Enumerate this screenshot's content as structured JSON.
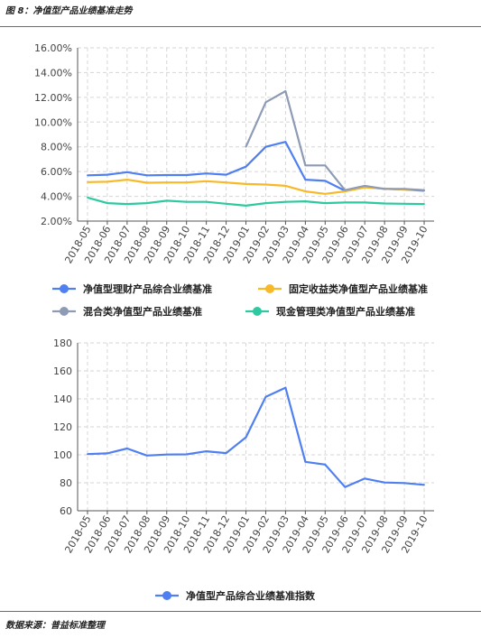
{
  "page": {
    "header": "图 8：净值型产品业绩基准走势",
    "footer": "数据来源：普益标准整理"
  },
  "colors": {
    "blue": "#4f7ff0",
    "orange": "#f7b928",
    "gray": "#8e9bb5",
    "green": "#2ec9a0",
    "grid": "#d6d6d6",
    "axis": "#555555"
  },
  "chart_data": [
    {
      "type": "line",
      "categories": [
        "2018-05",
        "2018-06",
        "2018-07",
        "2018-08",
        "2018-09",
        "2018-10",
        "2018-11",
        "2018-12",
        "2019-01",
        "2019-02",
        "2019-03",
        "2019-04",
        "2019-05",
        "2019-06",
        "2019-07",
        "2019-08",
        "2019-09",
        "2019-10"
      ],
      "ylim": [
        2.0,
        16.0
      ],
      "yticks": [
        "16.00%",
        "14.00%",
        "12.00%",
        "10.00%",
        "8.00%",
        "6.00%",
        "4.00%",
        "2.00%"
      ],
      "grid": true,
      "legend_position": "bottom",
      "series": [
        {
          "name": "净值型理财产品综合业绩基准",
          "color": "#4f7ff0",
          "values": [
            5.7,
            5.75,
            5.95,
            5.7,
            5.72,
            5.72,
            5.85,
            5.75,
            6.4,
            8.0,
            8.4,
            5.35,
            5.25,
            4.45,
            4.75,
            4.6,
            4.55,
            4.45
          ]
        },
        {
          "name": "固定收益类净值型产品业绩基准",
          "color": "#f7b928",
          "values": [
            5.15,
            5.18,
            5.35,
            5.1,
            5.12,
            5.12,
            5.22,
            5.12,
            5.0,
            4.95,
            4.85,
            4.4,
            4.2,
            4.4,
            4.72,
            4.62,
            4.55,
            4.5
          ]
        },
        {
          "name": "混合类净值型产品业绩基准",
          "color": "#8e9bb5",
          "values": [
            null,
            null,
            null,
            null,
            null,
            null,
            null,
            null,
            8.0,
            11.6,
            12.5,
            6.5,
            6.5,
            4.5,
            4.85,
            4.6,
            4.6,
            4.5
          ]
        },
        {
          "name": "现金管理类净值型产品业绩基准",
          "color": "#2ec9a0",
          "values": [
            3.9,
            3.45,
            3.38,
            3.45,
            3.65,
            3.55,
            3.55,
            3.4,
            3.25,
            3.45,
            3.55,
            3.6,
            3.45,
            3.5,
            3.5,
            3.42,
            3.4,
            3.38
          ]
        }
      ]
    },
    {
      "type": "line",
      "categories": [
        "2018-05",
        "2018-06",
        "2018-07",
        "2018-08",
        "2018-09",
        "2018-10",
        "2018-11",
        "2018-12",
        "2019-01",
        "2019-02",
        "2019-03",
        "2019-04",
        "2019-05",
        "2019-06",
        "2019-07",
        "2019-08",
        "2019-09",
        "2019-10"
      ],
      "ylim": [
        60,
        180
      ],
      "yticks": [
        "180",
        "160",
        "140",
        "120",
        "100",
        "80",
        "60"
      ],
      "grid": true,
      "legend_position": "bottom",
      "series": [
        {
          "name": "净值型产品综合业绩基准指数",
          "color": "#4f7ff0",
          "values": [
            100.5,
            101.0,
            104.5,
            99.5,
            100.2,
            100.3,
            102.5,
            101.2,
            112.5,
            141.5,
            148.0,
            95.0,
            93.0,
            77.0,
            83.0,
            80.2,
            79.8,
            78.5
          ]
        }
      ]
    }
  ]
}
